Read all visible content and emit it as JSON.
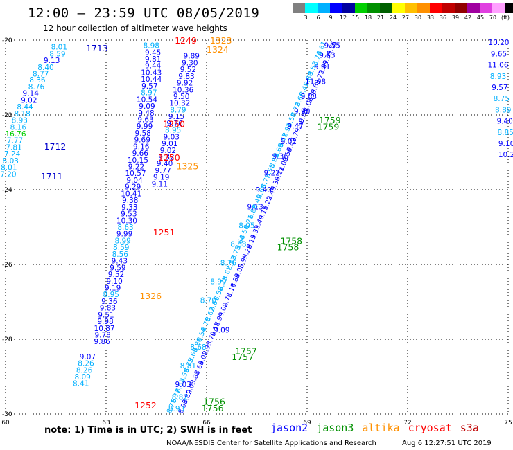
{
  "header": {
    "title": "12:00 – 23:59 UTC 08/05/2019",
    "subtitle": "12 hour collection of altimeter wave heights"
  },
  "colorbar": {
    "colors": [
      "#808080",
      "#00ffff",
      "#00b0ff",
      "#0000ff",
      "#0000a0",
      "#00d000",
      "#009000",
      "#006000",
      "#ffff00",
      "#ffc000",
      "#ff9000",
      "#ff0000",
      "#c00000",
      "#900000",
      "#a000a0",
      "#e040e0",
      "#ffa0ff",
      "#000000"
    ],
    "labels": [
      "3",
      "6",
      "9",
      "12",
      "15",
      "18",
      "21",
      "24",
      "27",
      "30",
      "33",
      "36",
      "39",
      "42",
      "45",
      "70",
      "(ft)"
    ]
  },
  "chart_data": {
    "type": "scatter",
    "title": "12:00 – 23:59 UTC 08/05/2019",
    "subtitle": "12 hour collection of altimeter wave heights",
    "xlabel": "",
    "ylabel": "",
    "xlim": [
      60,
      75
    ],
    "ylim": [
      -30,
      -20
    ],
    "xticks": [
      60,
      63,
      66,
      69,
      72,
      75
    ],
    "yticks": [
      -20,
      -22,
      -24,
      -26,
      -28,
      -30
    ],
    "grid": true,
    "legend": "bottom",
    "wave_heights": [
      {
        "x": 61.6,
        "y": -20.18,
        "v": "8.01",
        "c": "#00b0ff"
      },
      {
        "x": 61.55,
        "y": -20.36,
        "v": "8.59",
        "c": "#00b0ff"
      },
      {
        "x": 61.38,
        "y": -20.54,
        "v": "9.13",
        "c": "#0000ff"
      },
      {
        "x": 61.2,
        "y": -20.72,
        "v": "8.40",
        "c": "#00b0ff"
      },
      {
        "x": 61.05,
        "y": -20.9,
        "v": "8.77",
        "c": "#00b0ff"
      },
      {
        "x": 60.95,
        "y": -21.06,
        "v": "8.36",
        "c": "#00b0ff"
      },
      {
        "x": 60.92,
        "y": -21.24,
        "v": "8.76",
        "c": "#00b0ff"
      },
      {
        "x": 60.75,
        "y": -21.42,
        "v": "9.14",
        "c": "#0000ff"
      },
      {
        "x": 60.7,
        "y": -21.6,
        "v": "9.02",
        "c": "#0000ff"
      },
      {
        "x": 60.58,
        "y": -21.78,
        "v": "8.44",
        "c": "#00b0ff"
      },
      {
        "x": 60.5,
        "y": -21.96,
        "v": "8.18",
        "c": "#00b0ff"
      },
      {
        "x": 60.42,
        "y": -22.14,
        "v": "8.93",
        "c": "#00b0ff"
      },
      {
        "x": 60.38,
        "y": -22.32,
        "v": "8.16",
        "c": "#00b0ff"
      },
      {
        "x": 60.3,
        "y": -22.5,
        "v": "16.76",
        "c": "#00d000"
      },
      {
        "x": 60.28,
        "y": -22.68,
        "v": "7.77",
        "c": "#00b0ff"
      },
      {
        "x": 60.25,
        "y": -22.86,
        "v": "7.81",
        "c": "#00b0ff"
      },
      {
        "x": 60.2,
        "y": -23.04,
        "v": "7.24",
        "c": "#00b0ff"
      },
      {
        "x": 60.15,
        "y": -23.22,
        "v": "8.03",
        "c": "#00b0ff"
      },
      {
        "x": 60.1,
        "y": -23.4,
        "v": "8.01",
        "c": "#00b0ff"
      },
      {
        "x": 60.08,
        "y": -23.58,
        "v": "7.20",
        "c": "#00b0ff"
      },
      {
        "x": 64.35,
        "y": -20.14,
        "v": "8.98",
        "c": "#00b0ff"
      },
      {
        "x": 64.4,
        "y": -20.32,
        "v": "9.45",
        "c": "#0000ff"
      },
      {
        "x": 64.4,
        "y": -20.5,
        "v": "9.81",
        "c": "#0000ff"
      },
      {
        "x": 64.4,
        "y": -20.68,
        "v": "9.44",
        "c": "#0000ff"
      },
      {
        "x": 64.35,
        "y": -20.86,
        "v": "10.43",
        "c": "#0000ff"
      },
      {
        "x": 64.35,
        "y": -21.04,
        "v": "10.44",
        "c": "#0000ff"
      },
      {
        "x": 64.3,
        "y": -21.22,
        "v": "9.57",
        "c": "#0000ff"
      },
      {
        "x": 64.28,
        "y": -21.4,
        "v": "8.97",
        "c": "#00b0ff"
      },
      {
        "x": 64.22,
        "y": -21.58,
        "v": "10.54",
        "c": "#0000ff"
      },
      {
        "x": 64.22,
        "y": -21.76,
        "v": "9.09",
        "c": "#0000ff"
      },
      {
        "x": 64.2,
        "y": -21.94,
        "v": "9.48",
        "c": "#0000ff"
      },
      {
        "x": 64.18,
        "y": -22.12,
        "v": "9.63",
        "c": "#0000ff"
      },
      {
        "x": 64.15,
        "y": -22.3,
        "v": "9.99",
        "c": "#0000ff"
      },
      {
        "x": 64.1,
        "y": -22.48,
        "v": "9.58",
        "c": "#0000ff"
      },
      {
        "x": 64.08,
        "y": -22.66,
        "v": "9.69",
        "c": "#0000ff"
      },
      {
        "x": 64.05,
        "y": -22.84,
        "v": "9.16",
        "c": "#0000ff"
      },
      {
        "x": 64.02,
        "y": -23.02,
        "v": "9.66",
        "c": "#0000ff"
      },
      {
        "x": 63.95,
        "y": -23.2,
        "v": "10.15",
        "c": "#0000ff"
      },
      {
        "x": 63.9,
        "y": -23.38,
        "v": "9.22",
        "c": "#0000ff"
      },
      {
        "x": 63.88,
        "y": -23.56,
        "v": "10.57",
        "c": "#0000ff"
      },
      {
        "x": 63.85,
        "y": -23.74,
        "v": "9.04",
        "c": "#0000ff"
      },
      {
        "x": 63.8,
        "y": -23.92,
        "v": "9.29",
        "c": "#0000ff"
      },
      {
        "x": 63.75,
        "y": -24.1,
        "v": "10.41",
        "c": "#0000ff"
      },
      {
        "x": 63.72,
        "y": -24.28,
        "v": "9.38",
        "c": "#0000ff"
      },
      {
        "x": 63.7,
        "y": -24.46,
        "v": "9.33",
        "c": "#0000ff"
      },
      {
        "x": 63.68,
        "y": -24.64,
        "v": "9.53",
        "c": "#0000ff"
      },
      {
        "x": 63.62,
        "y": -24.82,
        "v": "10.30",
        "c": "#0000ff"
      },
      {
        "x": 63.58,
        "y": -25.0,
        "v": "8.63",
        "c": "#00b0ff"
      },
      {
        "x": 63.55,
        "y": -25.18,
        "v": "9.99",
        "c": "#0000ff"
      },
      {
        "x": 63.5,
        "y": -25.36,
        "v": "8.99",
        "c": "#00b0ff"
      },
      {
        "x": 63.45,
        "y": -25.54,
        "v": "8.59",
        "c": "#00b0ff"
      },
      {
        "x": 63.42,
        "y": -25.72,
        "v": "8.56",
        "c": "#00b0ff"
      },
      {
        "x": 63.4,
        "y": -25.9,
        "v": "9.43",
        "c": "#0000ff"
      },
      {
        "x": 63.35,
        "y": -26.08,
        "v": "9.59",
        "c": "#0000ff"
      },
      {
        "x": 63.3,
        "y": -26.26,
        "v": "9.52",
        "c": "#0000ff"
      },
      {
        "x": 63.25,
        "y": -26.44,
        "v": "9.10",
        "c": "#0000ff"
      },
      {
        "x": 63.2,
        "y": -26.62,
        "v": "9.19",
        "c": "#0000ff"
      },
      {
        "x": 63.15,
        "y": -26.8,
        "v": "8.95",
        "c": "#00b0ff"
      },
      {
        "x": 63.1,
        "y": -26.98,
        "v": "9.36",
        "c": "#0000ff"
      },
      {
        "x": 63.05,
        "y": -27.16,
        "v": "9.83",
        "c": "#0000ff"
      },
      {
        "x": 63.0,
        "y": -27.34,
        "v": "9.51",
        "c": "#0000ff"
      },
      {
        "x": 62.98,
        "y": -27.52,
        "v": "9.98",
        "c": "#0000ff"
      },
      {
        "x": 62.95,
        "y": -27.7,
        "v": "10.87",
        "c": "#0000ff"
      },
      {
        "x": 62.9,
        "y": -27.88,
        "v": "9.78",
        "c": "#0000ff"
      },
      {
        "x": 62.88,
        "y": -28.06,
        "v": "9.86",
        "c": "#0000ff"
      },
      {
        "x": 65.55,
        "y": -20.42,
        "v": "9.89",
        "c": "#0000ff"
      },
      {
        "x": 65.5,
        "y": -20.6,
        "v": "9.30",
        "c": "#0000ff"
      },
      {
        "x": 65.45,
        "y": -20.78,
        "v": "9.52",
        "c": "#0000ff"
      },
      {
        "x": 65.4,
        "y": -20.96,
        "v": "9.83",
        "c": "#0000ff"
      },
      {
        "x": 65.35,
        "y": -21.14,
        "v": "9.92",
        "c": "#0000ff"
      },
      {
        "x": 65.3,
        "y": -21.32,
        "v": "10.36",
        "c": "#0000ff"
      },
      {
        "x": 65.25,
        "y": -21.5,
        "v": "9.50",
        "c": "#0000ff"
      },
      {
        "x": 65.2,
        "y": -21.68,
        "v": "10.32",
        "c": "#0000ff"
      },
      {
        "x": 65.15,
        "y": -21.86,
        "v": "8.79",
        "c": "#00b0ff"
      },
      {
        "x": 65.1,
        "y": -22.04,
        "v": "9.15",
        "c": "#0000ff"
      },
      {
        "x": 65.05,
        "y": -22.22,
        "v": "9.76",
        "c": "#0000ff"
      },
      {
        "x": 65.0,
        "y": -22.4,
        "v": "8.95",
        "c": "#00b0ff"
      },
      {
        "x": 64.95,
        "y": -22.58,
        "v": "9.03",
        "c": "#0000ff"
      },
      {
        "x": 64.9,
        "y": -22.76,
        "v": "9.01",
        "c": "#0000ff"
      },
      {
        "x": 64.85,
        "y": -22.94,
        "v": "9.02",
        "c": "#0000ff"
      },
      {
        "x": 64.8,
        "y": -23.12,
        "v": "9.32",
        "c": "#0000ff"
      },
      {
        "x": 64.75,
        "y": -23.3,
        "v": "9.40",
        "c": "#0000ff"
      },
      {
        "x": 64.7,
        "y": -23.48,
        "v": "9.77",
        "c": "#0000ff"
      },
      {
        "x": 64.65,
        "y": -23.66,
        "v": "9.19",
        "c": "#0000ff"
      },
      {
        "x": 64.6,
        "y": -23.84,
        "v": "9.11",
        "c": "#0000ff"
      },
      {
        "x": 69.75,
        "y": -20.14,
        "v": "9.55",
        "c": "#0000ff"
      },
      {
        "x": 69.6,
        "y": -20.4,
        "v": "9.53",
        "c": "#0000ff"
      },
      {
        "x": 69.45,
        "y": -20.7,
        "v": "9.81",
        "c": "#0000ff"
      },
      {
        "x": 69.25,
        "y": -21.1,
        "v": "11.08",
        "c": "#0000ff"
      },
      {
        "x": 69.05,
        "y": -21.5,
        "v": "9.83",
        "c": "#0000ff"
      },
      {
        "x": 68.85,
        "y": -21.9,
        "v": "9.90",
        "c": "#0000ff"
      },
      {
        "x": 68.65,
        "y": -22.3,
        "v": "9.47",
        "c": "#0000ff"
      },
      {
        "x": 68.45,
        "y": -22.7,
        "v": "9.02",
        "c": "#0000ff"
      },
      {
        "x": 68.2,
        "y": -23.1,
        "v": "9.36",
        "c": "#0000ff"
      },
      {
        "x": 67.95,
        "y": -23.55,
        "v": "9.22",
        "c": "#0000ff"
      },
      {
        "x": 67.7,
        "y": -24.0,
        "v": "9.40",
        "c": "#0000ff"
      },
      {
        "x": 67.45,
        "y": -24.45,
        "v": "9.13",
        "c": "#0000ff"
      },
      {
        "x": 67.2,
        "y": -24.95,
        "v": "8.95",
        "c": "#00b0ff"
      },
      {
        "x": 66.95,
        "y": -25.45,
        "v": "8.88",
        "c": "#00b0ff"
      },
      {
        "x": 66.65,
        "y": -25.95,
        "v": "8.76",
        "c": "#00b0ff"
      },
      {
        "x": 66.35,
        "y": -26.45,
        "v": "8.99",
        "c": "#00b0ff"
      },
      {
        "x": 66.05,
        "y": -26.95,
        "v": "8.70",
        "c": "#00b0ff"
      },
      {
        "x": 66.45,
        "y": -27.75,
        "v": "9.09",
        "c": "#0000ff"
      },
      {
        "x": 65.75,
        "y": -28.2,
        "v": "8.68",
        "c": "#00b0ff"
      },
      {
        "x": 65.45,
        "y": -28.7,
        "v": "8.81",
        "c": "#00b0ff"
      },
      {
        "x": 65.3,
        "y": -29.2,
        "v": "9.03",
        "c": "#0000ff"
      },
      {
        "x": 65.2,
        "y": -29.55,
        "v": "8.82",
        "c": "#00b0ff"
      },
      {
        "x": 65.1,
        "y": -29.85,
        "v": "8.93",
        "c": "#00b0ff"
      },
      {
        "x": 74.72,
        "y": -20.06,
        "v": "10.20",
        "c": "#0000ff"
      },
      {
        "x": 74.72,
        "y": -20.36,
        "v": "9.65",
        "c": "#0000ff"
      },
      {
        "x": 74.7,
        "y": -20.66,
        "v": "11.06",
        "c": "#0000ff"
      },
      {
        "x": 74.7,
        "y": -20.96,
        "v": "8.93",
        "c": "#00b0ff"
      },
      {
        "x": 74.75,
        "y": -21.26,
        "v": "9.57",
        "c": "#0000ff"
      },
      {
        "x": 74.8,
        "y": -21.56,
        "v": "8.75",
        "c": "#00b0ff"
      },
      {
        "x": 74.85,
        "y": -21.86,
        "v": "8.89",
        "c": "#00b0ff"
      },
      {
        "x": 74.9,
        "y": -22.16,
        "v": "9.40",
        "c": "#0000ff"
      },
      {
        "x": 74.92,
        "y": -22.46,
        "v": "8.85",
        "c": "#00b0ff"
      },
      {
        "x": 74.95,
        "y": -22.76,
        "v": "9.10",
        "c": "#0000ff"
      },
      {
        "x": 74.95,
        "y": -23.06,
        "v": "10.2",
        "c": "#0000ff"
      },
      {
        "x": 62.45,
        "y": -28.46,
        "v": "9.07",
        "c": "#0000ff"
      },
      {
        "x": 62.4,
        "y": -28.64,
        "v": "8.26",
        "c": "#00b0ff"
      },
      {
        "x": 62.35,
        "y": -28.82,
        "v": "8.26",
        "c": "#00b0ff"
      },
      {
        "x": 62.3,
        "y": -29.0,
        "v": "8.09",
        "c": "#00b0ff"
      },
      {
        "x": 62.25,
        "y": -29.18,
        "v": "8.41",
        "c": "#00b0ff"
      }
    ],
    "time_labels": [
      {
        "x": 62.4,
        "y": -20.22,
        "v": "1713",
        "c": "#0000cc"
      },
      {
        "x": 61.15,
        "y": -22.85,
        "v": "1712",
        "c": "#0000cc"
      },
      {
        "x": 61.05,
        "y": -23.65,
        "v": "1711",
        "c": "#0000cc"
      },
      {
        "x": 65.05,
        "y": -20.02,
        "v": "1249",
        "c": "#ff0000"
      },
      {
        "x": 66.1,
        "y": -20.02,
        "v": "1323",
        "c": "#ff9000"
      },
      {
        "x": 66.0,
        "y": -20.26,
        "v": "1324",
        "c": "#ff9000"
      },
      {
        "x": 64.7,
        "y": -22.25,
        "v": "1250",
        "c": "#ff0000"
      },
      {
        "x": 64.55,
        "y": -23.15,
        "v": "1250",
        "c": "#ff0000"
      },
      {
        "x": 65.1,
        "y": -23.38,
        "v": "1325",
        "c": "#ff9000"
      },
      {
        "x": 64.4,
        "y": -25.15,
        "v": "1251",
        "c": "#ff0000"
      },
      {
        "x": 64.0,
        "y": -26.85,
        "v": "1326",
        "c": "#ff9000"
      },
      {
        "x": 63.85,
        "y": -29.78,
        "v": "1252",
        "c": "#ff0000"
      },
      {
        "x": 69.35,
        "y": -22.15,
        "v": "1759",
        "c": "#009000"
      },
      {
        "x": 69.3,
        "y": -22.32,
        "v": "1759",
        "c": "#009000"
      },
      {
        "x": 68.2,
        "y": -25.38,
        "v": "1758",
        "c": "#009000"
      },
      {
        "x": 68.1,
        "y": -25.55,
        "v": "1758",
        "c": "#009000"
      },
      {
        "x": 66.85,
        "y": -28.32,
        "v": "1757",
        "c": "#009000"
      },
      {
        "x": 66.75,
        "y": -28.48,
        "v": "1757",
        "c": "#009000"
      },
      {
        "x": 65.9,
        "y": -29.68,
        "v": "1756",
        "c": "#009000"
      },
      {
        "x": 65.85,
        "y": -29.85,
        "v": "1756",
        "c": "#009000"
      }
    ],
    "dense_track": {
      "jason2_values": [
        "9.55",
        "9.53",
        "9.81",
        "9.77",
        "9.63",
        "9.38",
        "11.08",
        "9.83",
        "9.90",
        "9.79",
        "9.47",
        "9.56",
        "9.02",
        "9.21",
        "9.36",
        "9.45",
        "9.22",
        "9.11",
        "9.40",
        "9.33",
        "9.13",
        "9.28",
        "8.95",
        "9.05",
        "8.88",
        "9.14",
        "8.76",
        "9.02",
        "8.99",
        "9.17",
        "8.70",
        "8.93",
        "9.09",
        "8.68",
        "8.81",
        "9.03",
        "8.82",
        "8.93"
      ],
      "jason3_values": [
        "8.61",
        "8.74",
        "8.52",
        "8.80",
        "8.45",
        "8.66",
        "8.72",
        "8.58",
        "8.91",
        "8.47",
        "8.69",
        "8.83",
        "8.55",
        "8.77",
        "8.60",
        "8.49",
        "8.88",
        "8.71",
        "8.56",
        "8.64",
        "8.79",
        "8.52",
        "8.67",
        "8.73",
        "8.58",
        "8.81",
        "8.62",
        "8.70",
        "8.54",
        "8.86",
        "8.68",
        "8.75",
        "8.59",
        "8.63",
        "8.77",
        "8.71"
      ],
      "track_a": {
        "x_start": 69.85,
        "y_start": -20.1,
        "x_end": 65.3,
        "y_end": -29.95
      },
      "track_b": {
        "x_start": 69.55,
        "y_start": -20.1,
        "x_end": 64.95,
        "y_end": -29.95
      }
    }
  },
  "footer": {
    "note": "note: 1) Time is in UTC; 2) SWH is in feet",
    "legend": [
      {
        "name": "jason2",
        "color": "#0000ff"
      },
      {
        "name": "jason3",
        "color": "#009000"
      },
      {
        "name": "altika",
        "color": "#ff9000"
      },
      {
        "name": "cryosat",
        "color": "#ff0000"
      },
      {
        "name": "s3a",
        "color": "#c00000"
      }
    ],
    "credit": "NOAA/NESDIS Center for Satellite Applications and Research",
    "timestamp": "Aug  6 12:27:51 UTC 2019"
  }
}
